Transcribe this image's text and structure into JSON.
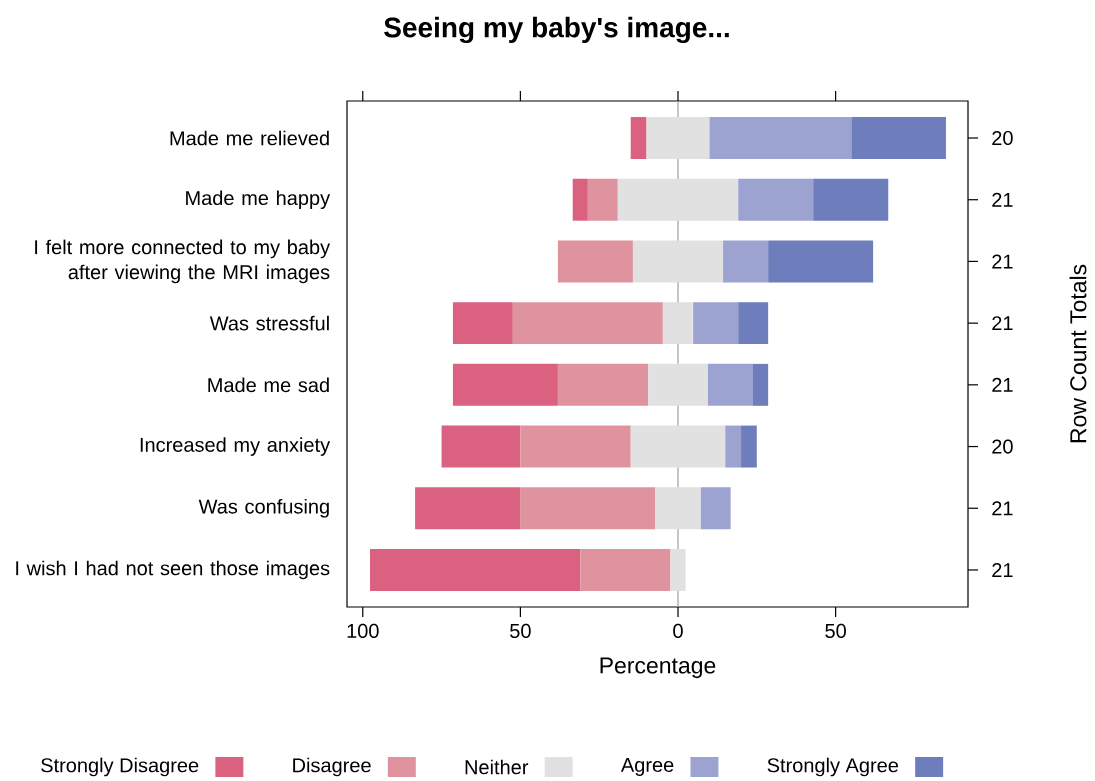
{
  "chart_data": {
    "type": "bar",
    "orientation": "horizontal",
    "title": "Seeing my baby's image...",
    "xlabel": "Percentage",
    "y2label": "Row Count Totals",
    "categories": [
      "Made me relieved",
      "Made me happy",
      "I felt more connected to my baby after viewing the MRI images",
      "Was stressful",
      "Made me sad",
      "Increased my anxiety",
      "Was confusing",
      "I wish I had not seen those images"
    ],
    "y2_categories": [
      "20",
      "21",
      "21",
      "21",
      "21",
      "20",
      "21",
      "21"
    ],
    "series": [
      {
        "name": "Strongly Disagree",
        "color": "#db6180",
        "values": [
          5,
          4.8,
          0,
          19.0,
          33.3,
          25,
          33.3,
          66.7
        ],
        "base": [
          -15,
          -33.4,
          null,
          -71.4,
          -71.4,
          -75,
          -83.4,
          -97.7
        ]
      },
      {
        "name": "Disagree",
        "color": "#df939f",
        "values": [
          0,
          9.5,
          23.8,
          47.6,
          28.6,
          35,
          42.9,
          28.6
        ],
        "base": [
          null,
          -28.6,
          -38.1,
          -52.4,
          -38.1,
          -50,
          -50.1,
          -31.0
        ]
      },
      {
        "name": "Neither",
        "color": "#e0e1e0",
        "values": [
          20,
          38.1,
          28.6,
          9.5,
          19.0,
          30,
          14.3,
          4.8
        ],
        "base": [
          -10,
          -19.1,
          -14.3,
          -4.8,
          -9.5,
          -15,
          -7.2,
          -2.4
        ]
      },
      {
        "name": "Agree",
        "color": "#9ca3d1",
        "values": [
          45,
          23.8,
          14.3,
          14.3,
          14.3,
          5,
          9.5,
          0
        ],
        "base": [
          10,
          19.1,
          14.3,
          4.8,
          9.5,
          15,
          7.2,
          null
        ]
      },
      {
        "name": "Strongly Agree",
        "color": "#6e7dbb",
        "values": [
          30,
          23.8,
          33.3,
          9.5,
          4.8,
          5,
          0,
          0
        ],
        "base": [
          55,
          42.9,
          28.6,
          19.1,
          23.8,
          20,
          null,
          null
        ]
      }
    ],
    "xlim": [
      -105,
      92
    ],
    "xticks": [
      {
        "value": -100,
        "label": "100"
      },
      {
        "value": -50,
        "label": "50"
      },
      0,
      50
    ],
    "ref_lines": [
      {
        "axis": "x",
        "value": 0,
        "color": "#a0a0a0"
      }
    ],
    "legend": "bottom"
  }
}
